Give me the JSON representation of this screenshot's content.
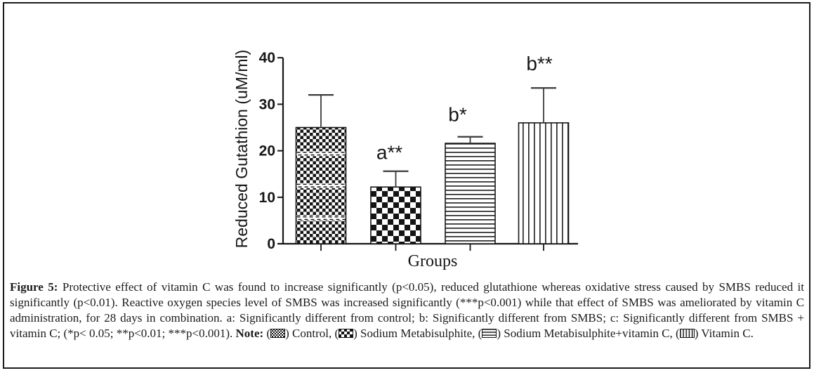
{
  "figure": {
    "caption_segments": [
      {
        "t": "text",
        "bold": true,
        "text": "Figure 5:"
      },
      {
        "t": "text",
        "bold": false,
        "text": " Protective effect of vitamin C was found to increase significantly (p<0.05), reduced glutathione whereas oxidative stress caused by SMBS reduced it significantly (p<0.01). Reactive oxygen species level of SMBS was increased significantly (***p<0.001) while that effect of SMBS was ameliorated by vitamin C administration, for 28 days in combination. a: Significantly different from control; b: Significantly different from SMBS; c: Significantly different from SMBS + vitamin C; (*p< 0.05; **p<0.01; ***p<0.001). "
      },
      {
        "t": "text",
        "bold": true,
        "text": "Note:"
      },
      {
        "t": "text",
        "bold": false,
        "text": " ("
      },
      {
        "t": "swatch",
        "pattern": "control",
        "name": "control-pattern-swatch"
      },
      {
        "t": "text",
        "bold": false,
        "text": ") Control, ("
      },
      {
        "t": "swatch",
        "pattern": "smbs",
        "name": "sodium-metabisulphite-pattern-swatch"
      },
      {
        "t": "text",
        "bold": false,
        "text": ") Sodium Metabisulphite, ("
      },
      {
        "t": "swatch",
        "pattern": "hlines",
        "name": "smbs-vitamin-c-pattern-swatch"
      },
      {
        "t": "text",
        "bold": false,
        "text": ") Sodium Metabisulphite+vitamin C, ("
      },
      {
        "t": "swatch",
        "pattern": "vlines",
        "name": "vitamin-c-pattern-swatch"
      },
      {
        "t": "text",
        "bold": false,
        "text": ") Vitamin C."
      }
    ]
  },
  "chart_data": {
    "type": "bar",
    "title": "",
    "xlabel": "Groups",
    "ylabel": "Reduced Gutathion (uM/ml)",
    "ylim": [
      0,
      40
    ],
    "yticks": [
      0,
      10,
      20,
      30,
      40
    ],
    "grid": false,
    "legend_position": "in-caption",
    "categories": [
      "Control",
      "Sodium Metabisulphite",
      "Sodium Metabisulphite+vitamin C",
      "Vitamin C"
    ],
    "values": [
      25.0,
      12.2,
      21.6,
      26.0
    ],
    "errors_plus": [
      7.0,
      3.4,
      1.4,
      7.5
    ],
    "annotations": [
      "",
      "a**",
      "b*",
      "b**"
    ],
    "patterns": [
      "control",
      "smbs",
      "hlines",
      "vlines"
    ]
  },
  "colors": {
    "ink": "#161616",
    "background": "#ffffff"
  }
}
